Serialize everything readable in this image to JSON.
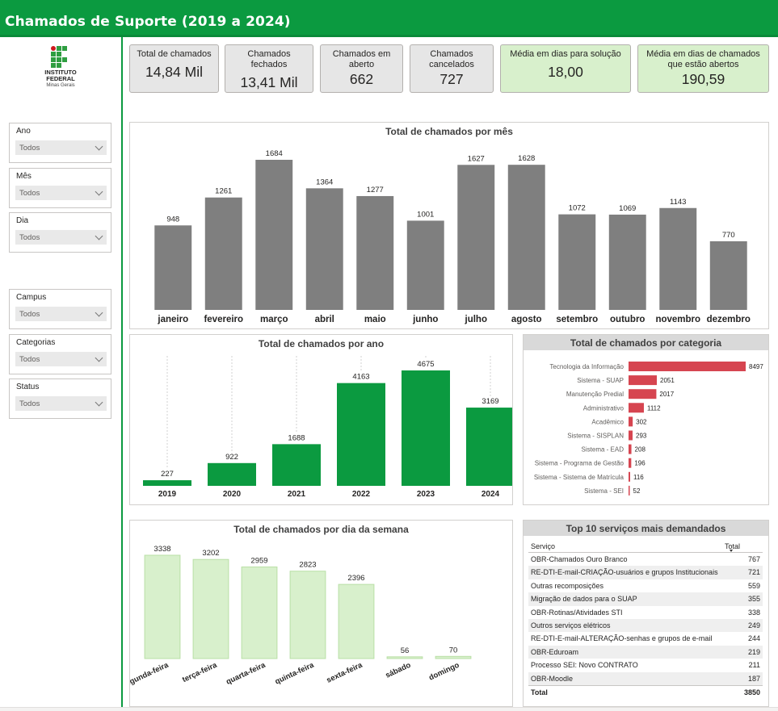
{
  "header": {
    "title": "Chamados de Suporte (2019 a 2024)"
  },
  "logo": {
    "line1": "INSTITUTO",
    "line2": "FEDERAL",
    "line3": "Minas Gerais"
  },
  "slicers": [
    {
      "label": "Ano",
      "value": "Todos"
    },
    {
      "label": "Mês",
      "value": "Todos"
    },
    {
      "label": "Dia",
      "value": "Todos"
    },
    {
      "label": "Campus",
      "value": "Todos"
    },
    {
      "label": "Categorias",
      "value": "Todos"
    },
    {
      "label": "Status",
      "value": "Todos"
    }
  ],
  "kpis": [
    {
      "title": "Total de chamados",
      "value": "14,84 Mil"
    },
    {
      "title": "Chamados fechados",
      "value": "13,41 Mil"
    },
    {
      "title": "Chamados em aberto",
      "value": "662"
    },
    {
      "title": "Chamados cancelados",
      "value": "727"
    },
    {
      "title": "Média em dias para solução",
      "value": "18,00"
    },
    {
      "title": "Média em dias de chamados que estão abertos",
      "value": "190,59"
    }
  ],
  "colors": {
    "brand_green": "#0b9a40",
    "bar_gray": "#7f7f7f",
    "bar_green": "#0b9a40",
    "bar_red": "#d64550",
    "bar_light_green": "#d8f0cc"
  },
  "chart_data": [
    {
      "id": "por-mes",
      "type": "bar",
      "title": "Total de chamados por mês",
      "categories": [
        "janeiro",
        "fevereiro",
        "março",
        "abril",
        "maio",
        "junho",
        "julho",
        "agosto",
        "setembro",
        "outubro",
        "novembro",
        "dezembro"
      ],
      "values": [
        948,
        1261,
        1684,
        1364,
        1277,
        1001,
        1627,
        1628,
        1072,
        1069,
        1143,
        770
      ],
      "ylim": [
        0,
        1684
      ]
    },
    {
      "id": "por-ano",
      "type": "bar",
      "title": "Total de chamados por ano",
      "categories": [
        "2019",
        "2020",
        "2021",
        "2022",
        "2023",
        "2024"
      ],
      "values": [
        227,
        922,
        1688,
        4163,
        4675,
        3169
      ],
      "ylim": [
        0,
        4675
      ]
    },
    {
      "id": "por-categoria",
      "type": "bar",
      "orientation": "horizontal",
      "title": "Total de chamados por categoria",
      "categories": [
        "Tecnologia da Informação",
        "Sistema - SUAP",
        "Manutenção Predial",
        "Administrativo",
        "Acadêmico",
        "Sistema - SISPLAN",
        "Sistema - EAD",
        "Sistema - Programa de Gestão",
        "Sistema - Sistema de Matrícula",
        "Sistema - SEI"
      ],
      "values": [
        8497,
        2051,
        2017,
        1112,
        302,
        293,
        208,
        196,
        116,
        52
      ],
      "xlim": [
        0,
        8497
      ]
    },
    {
      "id": "por-dia-semana",
      "type": "bar",
      "title": "Total de chamados por dia da semana",
      "categories": [
        "segunda-feira",
        "terça-feira",
        "quarta-feira",
        "quinta-feira",
        "sexta-feira",
        "sábado",
        "domingo"
      ],
      "values": [
        3338,
        3202,
        2959,
        2823,
        2396,
        56,
        70
      ],
      "ylim": [
        0,
        3338
      ]
    }
  ],
  "top10": {
    "title": "Top 10 serviços mais demandados",
    "col_service": "Serviço",
    "col_total": "Total",
    "rows": [
      {
        "service": "OBR-Chamados Ouro Branco",
        "total": "767"
      },
      {
        "service": "RE-DTI-E-mail-CRIAÇÃO-usuários e grupos Institucionais",
        "total": "721"
      },
      {
        "service": "Outras recomposições",
        "total": "559"
      },
      {
        "service": "Migração de dados para o SUAP",
        "total": "355"
      },
      {
        "service": "OBR-Rotinas/Atividades STI",
        "total": "338"
      },
      {
        "service": "Outros serviços elétricos",
        "total": "249"
      },
      {
        "service": "RE-DTI-E-mail-ALTERAÇÃO-senhas e grupos de e-mail",
        "total": "244"
      },
      {
        "service": "OBR-Eduroam",
        "total": "219"
      },
      {
        "service": "Processo SEI: Novo CONTRATO",
        "total": "211"
      },
      {
        "service": "OBR-Moodle",
        "total": "187"
      }
    ],
    "total_label": "Total",
    "total_value": "3850"
  }
}
